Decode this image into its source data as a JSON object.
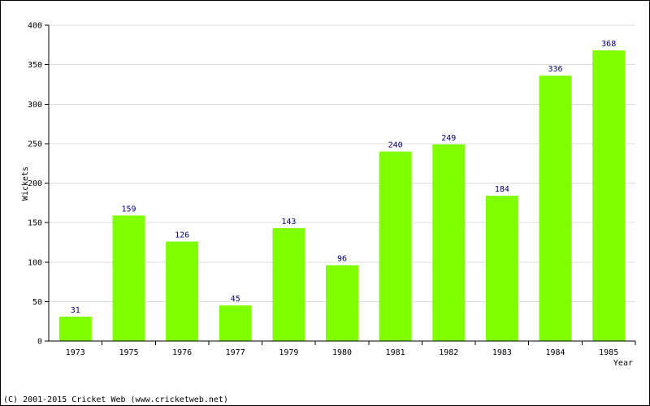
{
  "chart_data": {
    "type": "bar",
    "categories": [
      "1973",
      "1975",
      "1976",
      "1977",
      "1979",
      "1980",
      "1981",
      "1982",
      "1983",
      "1984",
      "1985"
    ],
    "values": [
      31,
      159,
      126,
      45,
      143,
      96,
      240,
      249,
      184,
      336,
      368
    ],
    "ylabel": "Wickets",
    "xlabel": "Year",
    "ylim": [
      0,
      400
    ],
    "yticks": [
      0,
      50,
      100,
      150,
      200,
      250,
      300,
      350,
      400
    ],
    "grid": true,
    "bar_color": "#80ff00",
    "value_label_color": "#000080",
    "grid_color": "#dddddd"
  },
  "footer": {
    "copyright": "(C) 2001-2015 Cricket Web (www.cricketweb.net)"
  }
}
